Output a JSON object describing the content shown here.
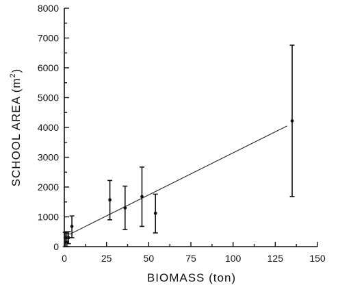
{
  "chart_data": {
    "type": "scatter",
    "xlabel": "BIOMASS (ton)",
    "ylabel_main": "SCHOOL AREA (m",
    "ylabel_sup": "2",
    "ylabel_close": ")",
    "xlim": [
      0,
      150
    ],
    "ylim": [
      0,
      8000
    ],
    "x_ticks": [
      0,
      25,
      50,
      75,
      100,
      125,
      150
    ],
    "x_tick_labels": [
      "0",
      "25",
      "50",
      "75",
      "100",
      "125",
      "150"
    ],
    "y_ticks": [
      0,
      1000,
      2000,
      3000,
      4000,
      5000,
      6000,
      7000,
      8000
    ],
    "y_tick_labels": [
      "0",
      "1000",
      "2000",
      "3000",
      "4000",
      "5000",
      "6000",
      "7000",
      "8000"
    ],
    "grid": false,
    "points": [
      {
        "x": 0.5,
        "y": 300,
        "low": 0,
        "high": 480
      },
      {
        "x": 1.5,
        "y": 150,
        "low": 0,
        "high": 450
      },
      {
        "x": 2.5,
        "y": 300,
        "low": 100,
        "high": 500
      },
      {
        "x": 4.5,
        "y": 680,
        "low": 300,
        "high": 1030
      },
      {
        "x": 27,
        "y": 1570,
        "low": 900,
        "high": 2220
      },
      {
        "x": 36,
        "y": 1300,
        "low": 570,
        "high": 2030
      },
      {
        "x": 46,
        "y": 1680,
        "low": 680,
        "high": 2670
      },
      {
        "x": 54,
        "y": 1120,
        "low": 460,
        "high": 1760
      },
      {
        "x": 135,
        "y": 4220,
        "low": 1680,
        "high": 6760
      }
    ],
    "fit_line": {
      "x": [
        3,
        132
      ],
      "y": [
        410,
        4050
      ]
    }
  }
}
